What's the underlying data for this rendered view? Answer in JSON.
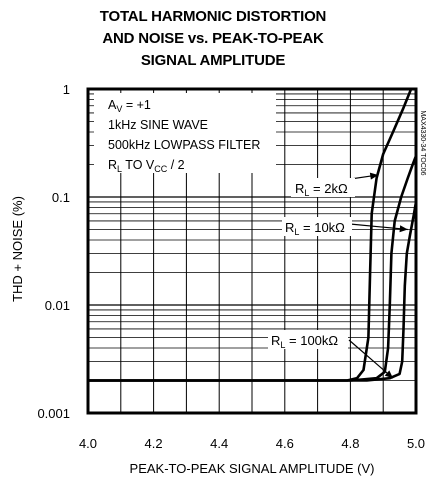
{
  "chart_data": {
    "type": "line",
    "title_lines": [
      "TOTAL HARMONIC DISTORTION",
      "AND NOISE vs. PEAK-TO-PEAK",
      "SIGNAL AMPLITUDE"
    ],
    "xlabel": "PEAK-TO-PEAK SIGNAL AMPLITUDE (V)",
    "ylabel": "THD + NOISE (%)",
    "xlim": [
      4.0,
      5.0
    ],
    "ylim": [
      0.001,
      1
    ],
    "yscale": "log",
    "grid": true,
    "x_ticks": [
      "4.0",
      "4.2",
      "4.4",
      "4.6",
      "4.8",
      "5.0"
    ],
    "y_ticks": [
      "0.001",
      "0.01",
      "0.1",
      "1"
    ],
    "conditions": [
      "AV = +1",
      "1kHz SINE WAVE",
      "500kHz LOWPASS FILTER",
      "RL TO VCC / 2"
    ],
    "side_code": "MAX4330-34 TOC06",
    "series": [
      {
        "name": "RL = 2kΩ",
        "points": [
          [
            4.0,
            0.002
          ],
          [
            4.79,
            0.002
          ],
          [
            4.82,
            0.0021
          ],
          [
            4.84,
            0.0025
          ],
          [
            4.855,
            0.005
          ],
          [
            4.86,
            0.02
          ],
          [
            4.865,
            0.07
          ],
          [
            4.88,
            0.15
          ],
          [
            4.9,
            0.25
          ],
          [
            4.93,
            0.4
          ],
          [
            4.96,
            0.65
          ],
          [
            4.985,
            1.0
          ]
        ]
      },
      {
        "name": "RL = 10kΩ",
        "points": [
          [
            4.0,
            0.002
          ],
          [
            4.8,
            0.002
          ],
          [
            4.88,
            0.0021
          ],
          [
            4.905,
            0.0024
          ],
          [
            4.915,
            0.004
          ],
          [
            4.92,
            0.01
          ],
          [
            4.925,
            0.03
          ],
          [
            4.935,
            0.06
          ],
          [
            4.955,
            0.1
          ],
          [
            4.975,
            0.15
          ],
          [
            4.99,
            0.2
          ],
          [
            5.0,
            0.24
          ]
        ]
      },
      {
        "name": "RL = 100kΩ",
        "points": [
          [
            4.0,
            0.002
          ],
          [
            4.85,
            0.002
          ],
          [
            4.92,
            0.0021
          ],
          [
            4.95,
            0.0023
          ],
          [
            4.958,
            0.003
          ],
          [
            4.962,
            0.006
          ],
          [
            4.966,
            0.015
          ],
          [
            4.972,
            0.03
          ],
          [
            4.982,
            0.045
          ],
          [
            4.994,
            0.07
          ],
          [
            5.0,
            0.09
          ]
        ]
      }
    ],
    "curve_labels": [
      "RL = 2kΩ",
      "RL = 10kΩ",
      "RL = 100kΩ"
    ]
  }
}
